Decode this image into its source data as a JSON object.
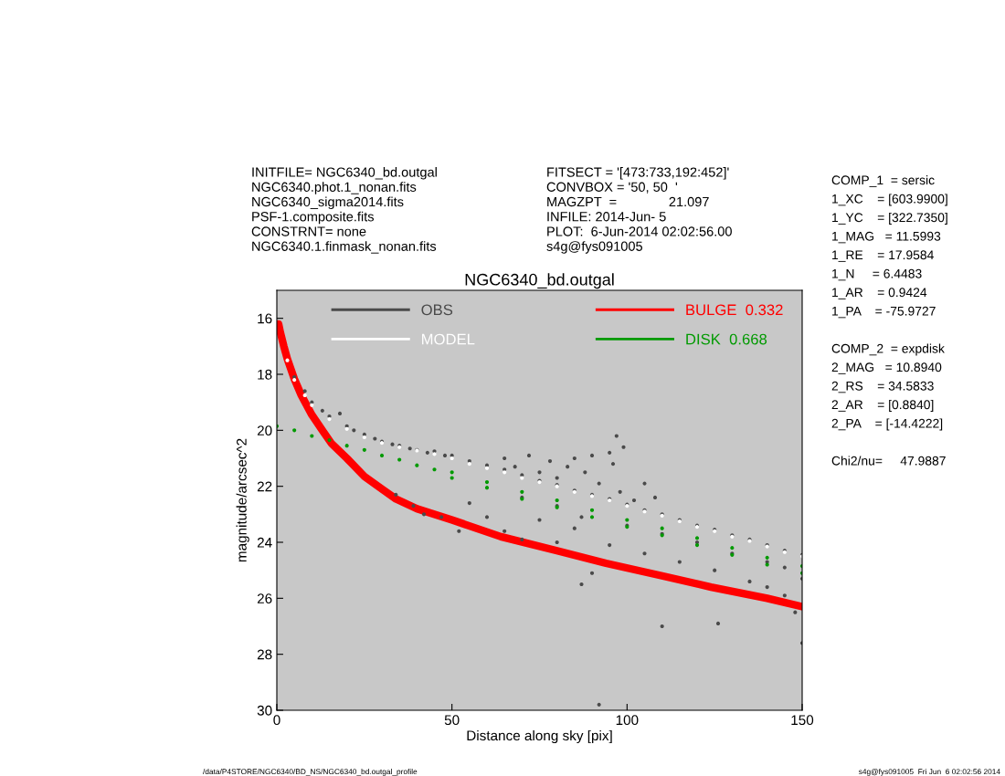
{
  "chart_data": {
    "type": "scatter",
    "title": "NGC6340_bd.outgal",
    "xlabel": "Distance along sky [pix]",
    "ylabel": "magnitude/arcsec^2",
    "xlim": [
      0,
      150
    ],
    "xticks": [
      0,
      50,
      100,
      150
    ],
    "ylim": [
      30,
      15
    ],
    "yticks": [
      16,
      18,
      20,
      22,
      24,
      26,
      28,
      30
    ],
    "grid": false,
    "legend": "top left",
    "annotations": [
      "INITFILE= NGC6340_bd.outgal\nNGC6340.phot.1_nonan.fits\nNGC6340_sigma2014.fits\nPSF-1.composite.fits\nCONSTRNT= none\nNGC6340.1.finmask_nonan.fits",
      "FITSECT = '[473:733,192:452]'\nCONVBOX = '50, 50  '\nMAGZPT  =              21.097\nINFILE: 2014-Jun- 5\nPLOT:  6-Jun-2014 02:02:56.00\ns4g@fys091005",
      "COMP_1  = sersic\n1_XC    = [603.9900]\n1_YC    = [322.7350]\n1_MAG   = 11.5993\n1_RE    = 17.9584\n1_N     = 6.4483\n1_AR    = 0.9424\n1_PA    = -75.9727\n\nCOMP_2  = expdisk\n2_MAG   = 10.8940\n2_RS    = 34.5833\n2_AR    = [0.8840]\n2_PA    = [-14.4222]\n\nChi2/nu=     47.9887",
      "/data/P4STORE/NGC6340/BD_NS/NGC6340_bd.outgal_profile",
      "s4g@fys091005  Fri Jun  6 02:02:56 2014"
    ],
    "series": [
      {
        "name": "OBS",
        "marker": "circle",
        "color": "#4a4a4a",
        "x": [
          5,
          8,
          10,
          13,
          15,
          18,
          20,
          22,
          25,
          28,
          30,
          33,
          35,
          38,
          40,
          43,
          45,
          48,
          50,
          55,
          60,
          65,
          70,
          75,
          80,
          85,
          90,
          95,
          100,
          105,
          110,
          115,
          120,
          125,
          130,
          135,
          140,
          145,
          150,
          70,
          80,
          87,
          100,
          110,
          120,
          130,
          140,
          145,
          65,
          68,
          72,
          75,
          78,
          80,
          83,
          85,
          88,
          90,
          92,
          95,
          96,
          98,
          102,
          105,
          108,
          60,
          65,
          70,
          75,
          80,
          85,
          95,
          105,
          115,
          125,
          135,
          140,
          145,
          150,
          148,
          47,
          55,
          52,
          34,
          39,
          42,
          90,
          87,
          97,
          99,
          150,
          110,
          126,
          92
        ],
        "values": [
          18.1,
          18.6,
          19.0,
          19.3,
          19.5,
          19.4,
          19.85,
          20.0,
          20.15,
          20.3,
          20.4,
          20.5,
          20.55,
          20.65,
          20.7,
          20.8,
          20.75,
          20.9,
          20.9,
          21.1,
          21.25,
          21.4,
          21.6,
          21.8,
          21.95,
          22.15,
          22.3,
          22.45,
          22.65,
          22.85,
          23.0,
          23.2,
          23.4,
          23.55,
          23.75,
          23.9,
          24.1,
          24.3,
          24.45,
          22.4,
          22.7,
          23.1,
          23.4,
          23.7,
          24.0,
          24.4,
          24.7,
          24.9,
          21.0,
          21.3,
          20.9,
          21.5,
          21.1,
          21.7,
          21.3,
          21.0,
          21.5,
          20.9,
          21.9,
          20.8,
          21.2,
          22.2,
          22.5,
          21.9,
          22.4,
          23.1,
          23.6,
          23.9,
          23.2,
          24.0,
          23.5,
          24.1,
          24.4,
          24.7,
          25.0,
          25.4,
          25.6,
          25.9,
          25.3,
          26.5,
          23.1,
          22.6,
          23.6,
          22.3,
          22.7,
          23.0,
          25.1,
          25.5,
          20.2,
          20.6,
          27.6,
          27.0,
          26.9,
          29.8
        ]
      },
      {
        "name": "MODEL",
        "marker": "circle",
        "color": "#ffffff",
        "x": [
          3,
          5,
          8,
          10,
          15,
          20,
          25,
          30,
          35,
          40,
          45,
          50,
          55,
          60,
          65,
          70,
          75,
          80,
          85,
          90,
          95,
          100,
          105,
          110,
          115,
          120,
          125,
          130,
          135,
          140,
          145,
          150
        ],
        "values": [
          17.5,
          18.2,
          18.75,
          19.1,
          19.6,
          19.95,
          20.25,
          20.45,
          20.6,
          20.72,
          20.85,
          21.0,
          21.2,
          21.35,
          21.5,
          21.7,
          21.85,
          22.0,
          22.2,
          22.35,
          22.5,
          22.7,
          22.9,
          23.05,
          23.25,
          23.45,
          23.6,
          23.8,
          23.95,
          24.15,
          24.35,
          24.5
        ]
      },
      {
        "name": "BULGE  0.332",
        "type": "line",
        "color": "#ff0000",
        "x": [
          0.5,
          1,
          2,
          3,
          5,
          7,
          10,
          13,
          15.6,
          20,
          25,
          30,
          34,
          40,
          50,
          64,
          80,
          94,
          110,
          124,
          140,
          150
        ],
        "values": [
          16.2,
          16.5,
          17.0,
          17.45,
          18.17,
          18.75,
          19.45,
          20.0,
          20.47,
          21.0,
          21.65,
          22.1,
          22.45,
          22.8,
          23.2,
          23.8,
          24.3,
          24.75,
          25.2,
          25.6,
          26.0,
          26.3
        ]
      },
      {
        "name": "DISK  0.668",
        "marker": "circle",
        "color": "#009a00",
        "x": [
          0,
          5,
          10,
          15,
          20,
          25,
          30,
          35,
          40,
          45,
          50,
          50,
          60,
          60,
          70,
          70,
          80,
          80,
          90,
          90,
          100,
          100,
          110,
          110,
          120,
          120,
          130,
          130,
          140,
          140,
          150,
          150
        ],
        "values": [
          19.85,
          20.0,
          20.2,
          20.35,
          20.55,
          20.7,
          20.9,
          21.05,
          21.25,
          21.4,
          21.5,
          21.7,
          21.85,
          22.05,
          22.2,
          22.45,
          22.5,
          22.75,
          22.85,
          23.1,
          23.2,
          23.45,
          23.5,
          23.75,
          23.85,
          24.1,
          24.2,
          24.45,
          24.55,
          24.8,
          24.85,
          25.1
        ]
      }
    ]
  }
}
